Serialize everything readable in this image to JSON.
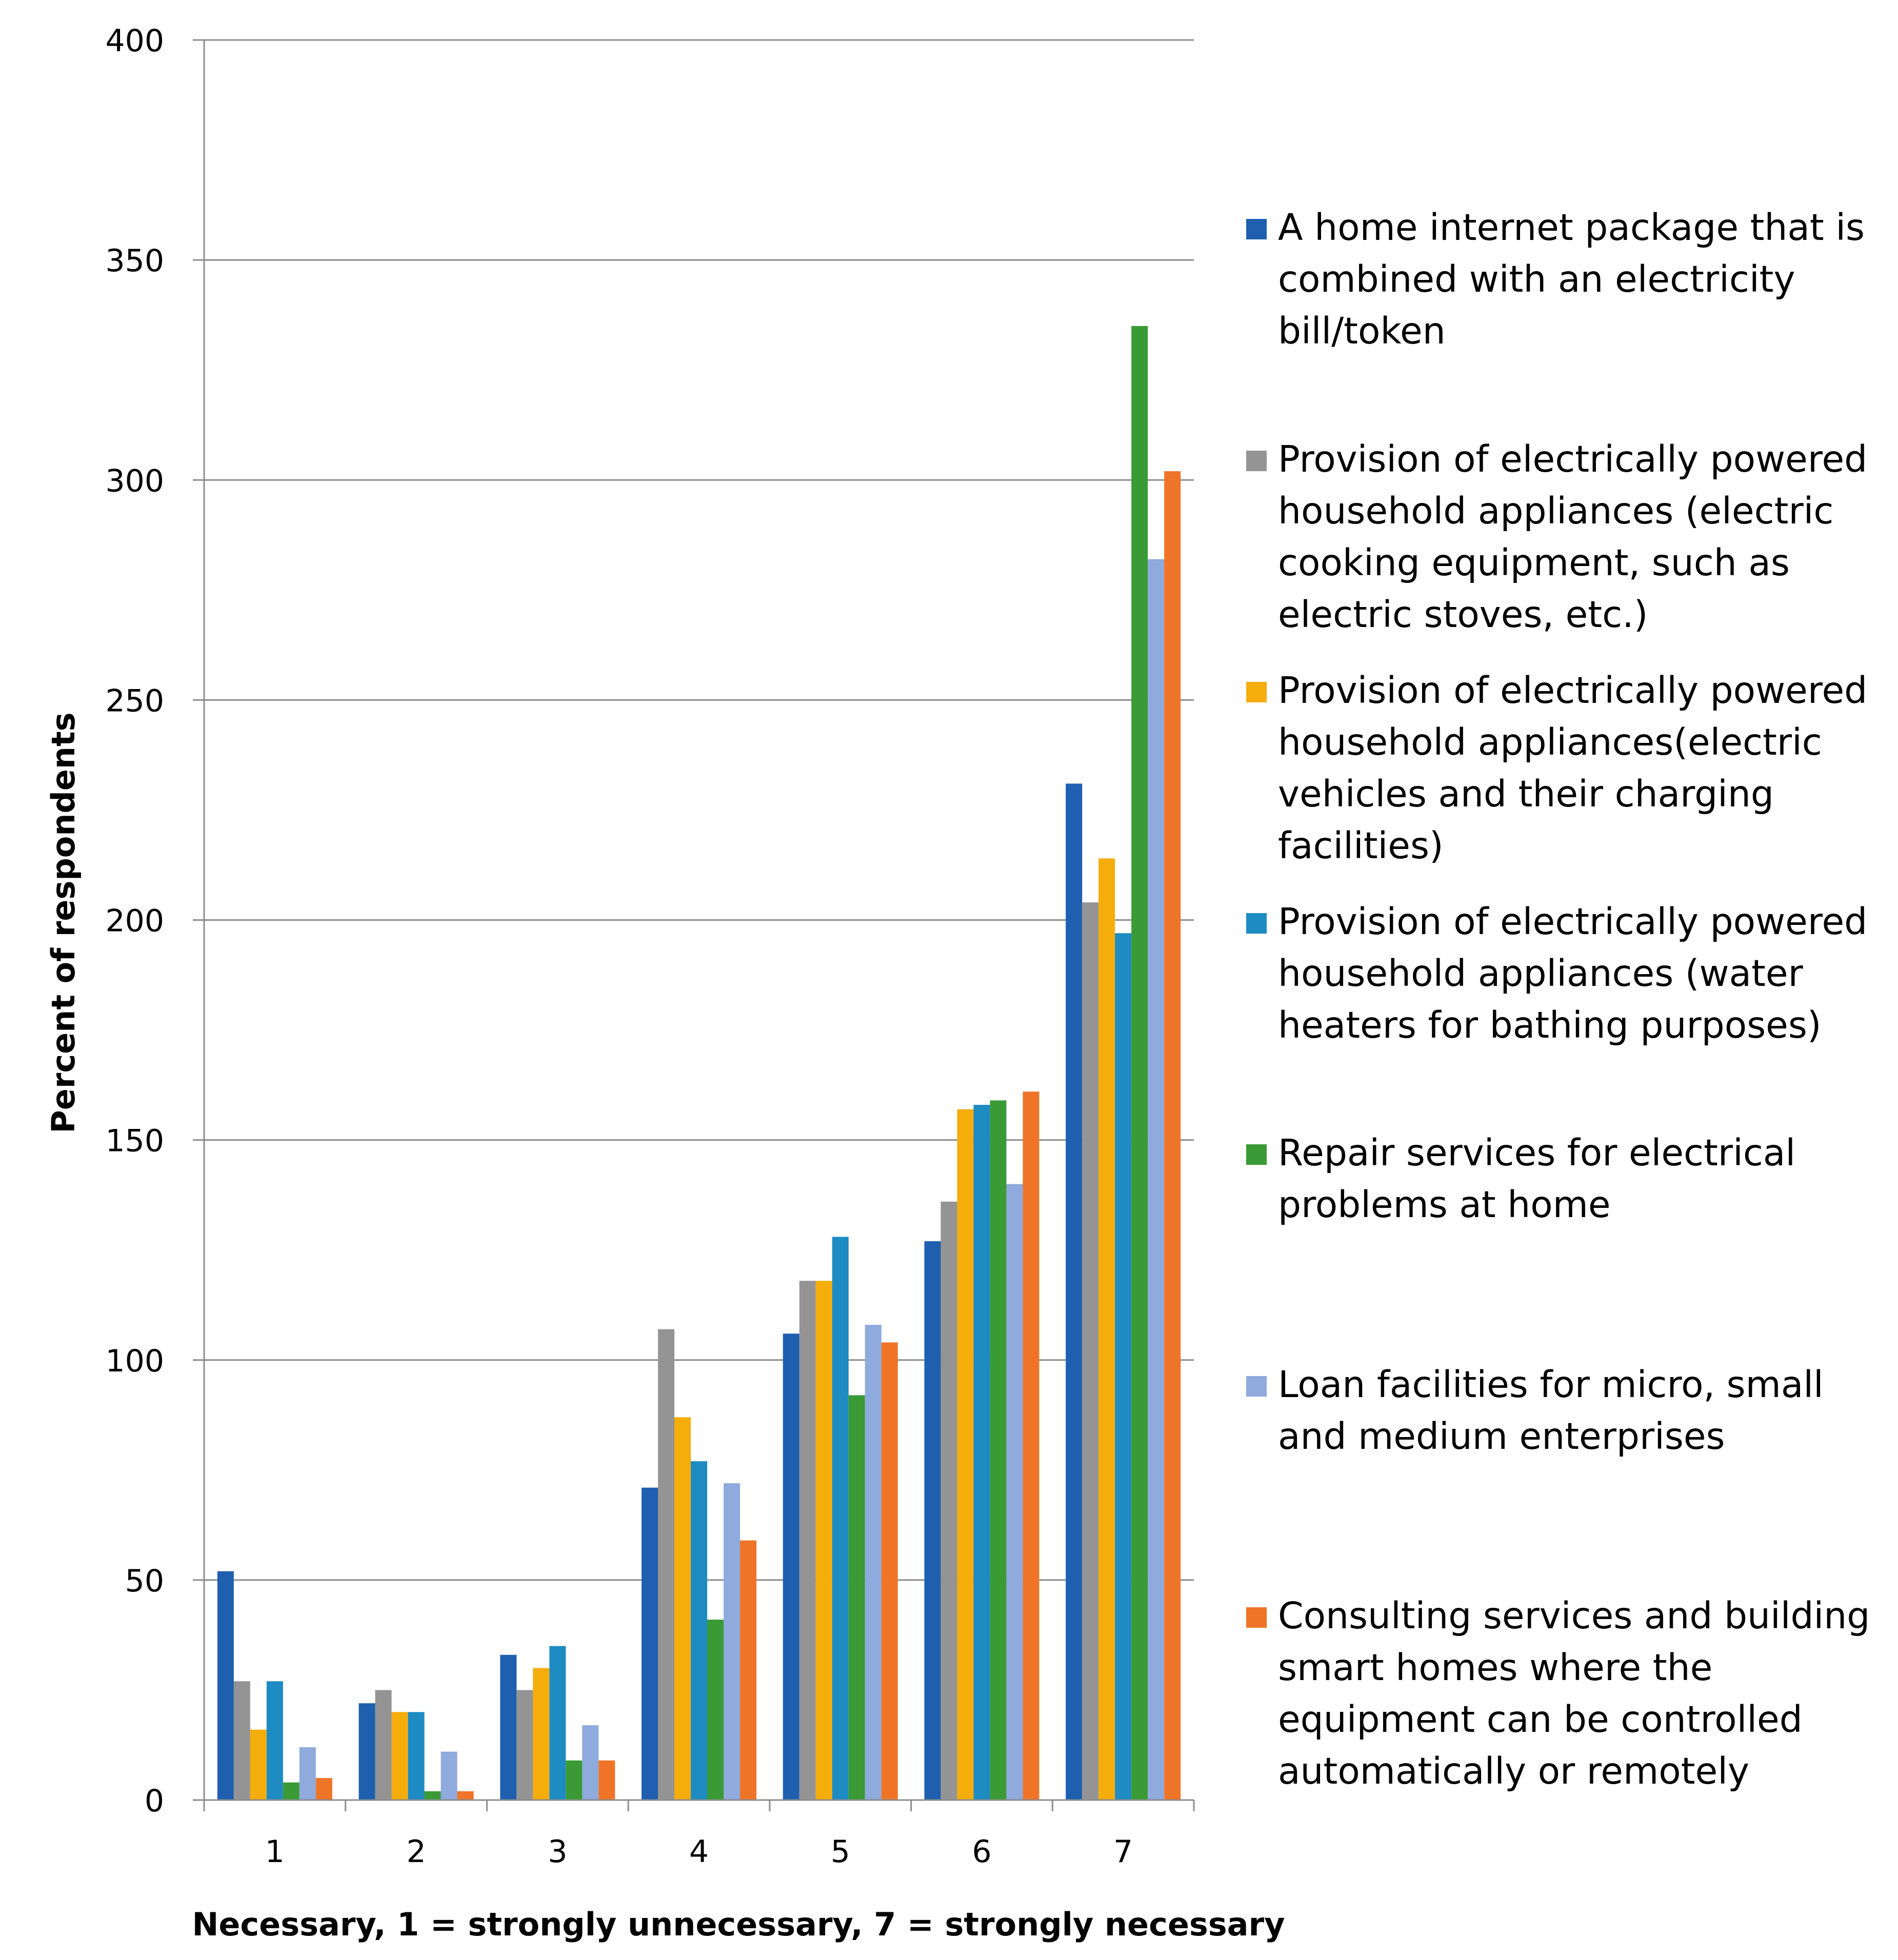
{
  "chart_data": {
    "type": "bar",
    "title": "",
    "xlabel": "Necessary, 1 = strongly unnecessary, 7 = strongly necessary",
    "ylabel": "Percent of respondents",
    "categories": [
      "1",
      "2",
      "3",
      "4",
      "5",
      "6",
      "7"
    ],
    "ylim": [
      0,
      400
    ],
    "yticks": [
      0,
      50,
      100,
      150,
      200,
      250,
      300,
      350,
      400
    ],
    "grid": true,
    "legend_position": "right",
    "series": [
      {
        "name": "A home internet package that is combined with an electricity bill/token",
        "color": "#1f5faf",
        "values": [
          52,
          22,
          33,
          71,
          106,
          127,
          231
        ]
      },
      {
        "name": "Provision of electrically powered household appliances (electric cooking equipment, such as electric stoves, etc.)",
        "color": "#949494",
        "values": [
          27,
          25,
          25,
          107,
          118,
          136,
          204
        ]
      },
      {
        "name": "Provision of electrically powered household appliances(electric vehicles and their charging facilities)",
        "color": "#f5ad0c",
        "values": [
          16,
          20,
          30,
          87,
          118,
          157,
          214
        ]
      },
      {
        "name": "Provision of electrically powered household appliances (water heaters for bathing purposes)",
        "color": "#1e8bc3",
        "values": [
          27,
          20,
          35,
          77,
          128,
          158,
          197
        ]
      },
      {
        "name": "Repair services for electrical problems at home",
        "color": "#3a9a35",
        "values": [
          4,
          2,
          9,
          41,
          92,
          159,
          335
        ]
      },
      {
        "name": "Loan facilities for micro, small and medium enterprises",
        "color": "#8faadc",
        "values": [
          12,
          11,
          17,
          72,
          108,
          140,
          282
        ]
      },
      {
        "name": "Consulting services and building smart homes where the equipment can be controlled automatically or remotely",
        "color": "#f07427",
        "values": [
          5,
          2,
          9,
          59,
          104,
          161,
          302
        ]
      }
    ]
  },
  "legend": {
    "items": [
      {
        "lines": [
          "A home internet package that is",
          "combined with an electricity",
          "bill/token"
        ]
      },
      {
        "lines": [
          "Provision of electrically powered",
          "household appliances (electric",
          "cooking equipment, such as",
          "electric stoves, etc.)"
        ]
      },
      {
        "lines": [
          "Provision of electrically powered",
          "household appliances(electric",
          "vehicles and their charging",
          "facilities)"
        ]
      },
      {
        "lines": [
          "Provision of electrically powered",
          "household appliances (water",
          "heaters for bathing purposes)"
        ]
      },
      {
        "lines": [
          "Repair services for electrical",
          "problems at home"
        ]
      },
      {
        "lines": [
          "Loan facilities for micro, small",
          "and medium enterprises"
        ]
      },
      {
        "lines": [
          "Consulting services and building",
          "smart homes where the",
          "equipment can be controlled",
          "automatically or remotely"
        ]
      }
    ]
  }
}
